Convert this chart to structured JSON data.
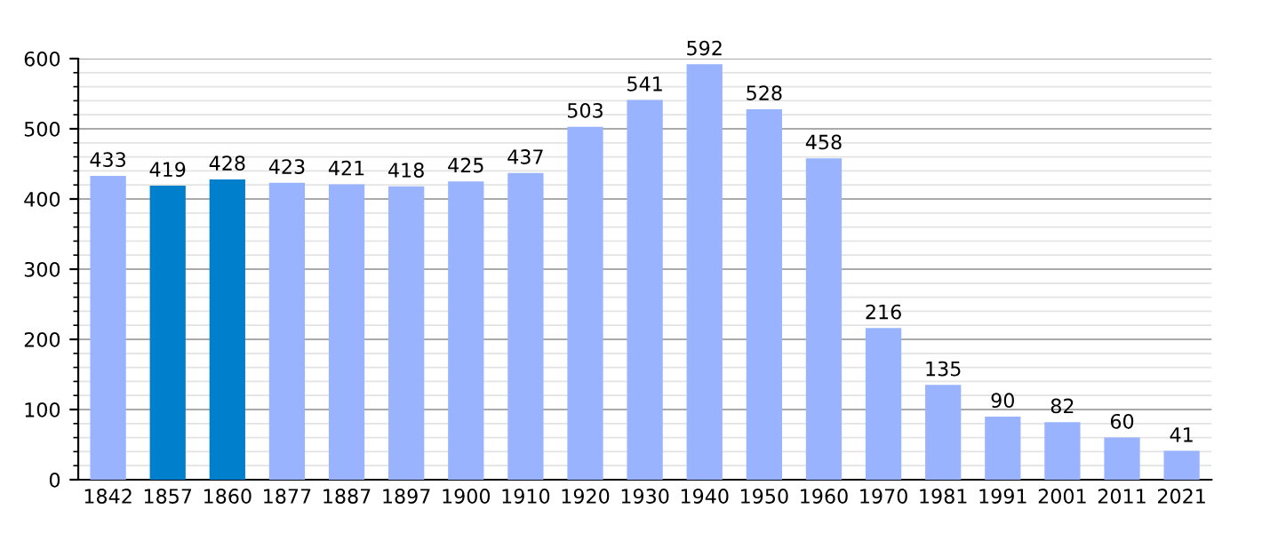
{
  "chart_data": {
    "type": "bar",
    "categories": [
      "1842",
      "1857",
      "1860",
      "1877",
      "1887",
      "1897",
      "1900",
      "1910",
      "1920",
      "1930",
      "1940",
      "1950",
      "1960",
      "1970",
      "1981",
      "1991",
      "2001",
      "2011",
      "2021"
    ],
    "values": [
      433,
      419,
      428,
      423,
      421,
      418,
      425,
      437,
      503,
      541,
      592,
      528,
      458,
      216,
      135,
      90,
      82,
      60,
      41
    ],
    "colors": [
      "#99b3ff",
      "#0080cc",
      "#0080cc",
      "#99b3ff",
      "#99b3ff",
      "#99b3ff",
      "#99b3ff",
      "#99b3ff",
      "#99b3ff",
      "#99b3ff",
      "#99b3ff",
      "#99b3ff",
      "#99b3ff",
      "#99b3ff",
      "#99b3ff",
      "#99b3ff",
      "#99b3ff",
      "#99b3ff",
      "#99b3ff"
    ],
    "ylim": [
      0,
      600
    ],
    "yticks": [
      0,
      100,
      200,
      300,
      400,
      500,
      600
    ],
    "grid": "y",
    "data_labels": true
  }
}
